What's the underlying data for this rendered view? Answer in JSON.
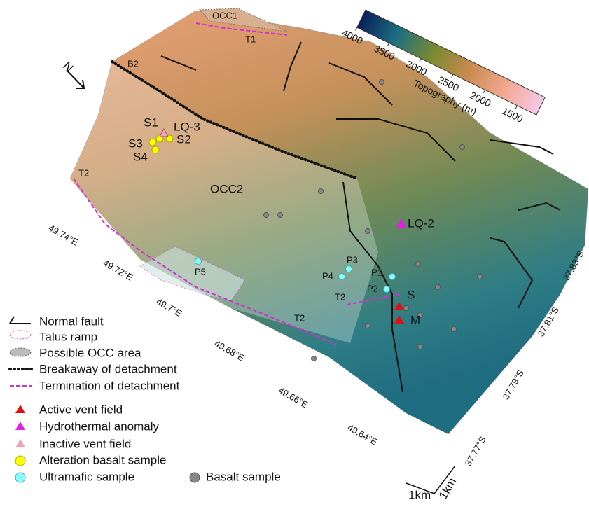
{
  "north": "N",
  "colorbar": {
    "title": "Topography (m)",
    "lim": [
      4000,
      1200
    ],
    "ticks": [
      4000,
      3500,
      3000,
      2500,
      2000,
      1500
    ],
    "colors": [
      "#0b1f5c",
      "#1e6f80",
      "#7a8a30",
      "#c98a4e",
      "#f0a890",
      "#f7c8e8"
    ]
  },
  "map_labels": {
    "occ1": "OCC1",
    "t1": "T1",
    "b2": "B2",
    "s1": "S1",
    "lq3": "LQ-3",
    "s3": "S3",
    "s2": "S2",
    "s4": "S4",
    "t2_left": "T2",
    "occ2": "OCC2",
    "lq2": "LQ-2",
    "p3": "P3",
    "p4": "P4",
    "p1": "P1",
    "p2": "P2",
    "t2_mid": "T2",
    "s": "S",
    "m": "M",
    "p5": "P5",
    "t2_bottom": "T2"
  },
  "longitudes": [
    "49.74°E",
    "49.72°E",
    "49.7°E",
    "49.68°E",
    "49.66°E",
    "49.64°E"
  ],
  "latitudes": [
    "37.83°S",
    "37.81°S",
    "37.79°S",
    "37.77°S"
  ],
  "scale": [
    "1km",
    "1km"
  ],
  "legend": [
    "Normal fault",
    "Talus ramp",
    "Possible OCC area",
    "Breakaway of detachment",
    "Termination of detachment",
    "Active vent field",
    "Hydrothermal anomaly",
    "Inactive vent field",
    "Alteration basalt sample",
    "Ultramafic sample",
    "Basalt sample"
  ]
}
